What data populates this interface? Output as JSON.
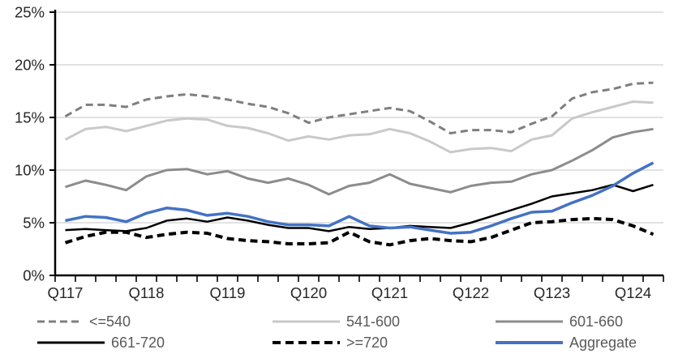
{
  "figure": {
    "background": "#FFFFFF",
    "title": ""
  },
  "chart_data": {
    "type": "line",
    "title": "",
    "xlabel": "",
    "ylabel": "",
    "grid": "horizontal",
    "legend_position": "bottom",
    "x_axis": {
      "tick_labels": [
        "Q117",
        "Q118",
        "Q119",
        "Q120",
        "Q121",
        "Q122",
        "Q123",
        "Q124"
      ],
      "label_every_n_points": 4,
      "total_points": 30,
      "x_values": [
        "Q117",
        "Q217",
        "Q317",
        "Q417",
        "Q118",
        "Q218",
        "Q318",
        "Q418",
        "Q119",
        "Q219",
        "Q319",
        "Q419",
        "Q120",
        "Q220",
        "Q320",
        "Q420",
        "Q121",
        "Q221",
        "Q321",
        "Q421",
        "Q122",
        "Q222",
        "Q322",
        "Q422",
        "Q123",
        "Q223",
        "Q323",
        "Q423",
        "Q124",
        "Q224"
      ]
    },
    "y_axis": {
      "tick_labels": [
        "0%",
        "5%",
        "10%",
        "15%",
        "20%",
        "25%"
      ],
      "min": 0,
      "max": 25,
      "tick_step": 5,
      "unit": "%"
    },
    "colors": {
      "gridline": "#D9D9D9",
      "axis": "#000000",
      "axis_text": "#262626",
      "legend_text": "#595959"
    },
    "series": [
      {
        "name": "<=540",
        "color": "#7F7F7F",
        "line_style": "dashed",
        "stroke_width": 3,
        "values": [
          15.1,
          16.2,
          16.2,
          16.0,
          16.7,
          17.0,
          17.2,
          17.0,
          16.7,
          16.3,
          16.0,
          15.4,
          14.5,
          15.0,
          15.3,
          15.6,
          15.9,
          15.6,
          14.6,
          13.5,
          13.8,
          13.8,
          13.6,
          14.4,
          15.1,
          16.8,
          17.4,
          17.7,
          18.2,
          18.3
        ]
      },
      {
        "name": "541-600",
        "color": "#C9C9C9",
        "line_style": "solid",
        "stroke_width": 3,
        "values": [
          12.9,
          13.9,
          14.1,
          13.7,
          14.2,
          14.7,
          14.9,
          14.8,
          14.2,
          14.0,
          13.5,
          12.8,
          13.2,
          12.9,
          13.3,
          13.4,
          13.9,
          13.5,
          12.7,
          11.7,
          12.0,
          12.1,
          11.8,
          12.9,
          13.3,
          14.9,
          15.5,
          16.0,
          16.5,
          16.4
        ]
      },
      {
        "name": "601-660",
        "color": "#8C8C8C",
        "line_style": "solid",
        "stroke_width": 3,
        "values": [
          8.4,
          9.0,
          8.6,
          8.1,
          9.4,
          10.0,
          10.1,
          9.6,
          9.9,
          9.2,
          8.8,
          9.2,
          8.6,
          7.7,
          8.5,
          8.8,
          9.6,
          8.7,
          8.3,
          7.9,
          8.5,
          8.8,
          8.9,
          9.6,
          10.0,
          10.9,
          11.9,
          13.1,
          13.6,
          13.9
        ]
      },
      {
        "name": "661-720",
        "color": "#000000",
        "line_style": "solid",
        "stroke_width": 2.5,
        "values": [
          4.3,
          4.4,
          4.3,
          4.2,
          4.5,
          5.2,
          5.4,
          5.1,
          5.5,
          5.2,
          4.8,
          4.5,
          4.5,
          4.2,
          4.6,
          4.4,
          4.5,
          4.7,
          4.6,
          4.5,
          5.0,
          5.6,
          6.2,
          6.8,
          7.5,
          7.8,
          8.1,
          8.6,
          8.0,
          8.6
        ]
      },
      {
        "name": ">=720",
        "color": "#000000",
        "line_style": "dashed",
        "stroke_width": 4,
        "values": [
          3.1,
          3.7,
          4.1,
          4.1,
          3.6,
          3.9,
          4.1,
          4.0,
          3.5,
          3.3,
          3.2,
          3.0,
          3.0,
          3.1,
          4.1,
          3.2,
          2.9,
          3.3,
          3.5,
          3.3,
          3.2,
          3.6,
          4.3,
          5.0,
          5.1,
          5.3,
          5.4,
          5.3,
          4.7,
          3.9
        ]
      },
      {
        "name": "Aggregate",
        "color": "#4472C4",
        "line_style": "solid",
        "stroke_width": 3.5,
        "values": [
          5.2,
          5.6,
          5.5,
          5.1,
          5.9,
          6.4,
          6.2,
          5.7,
          5.9,
          5.6,
          5.1,
          4.8,
          4.8,
          4.7,
          5.6,
          4.7,
          4.5,
          4.6,
          4.3,
          4.0,
          4.1,
          4.7,
          5.4,
          6.0,
          6.1,
          6.9,
          7.6,
          8.5,
          9.7,
          10.7
        ]
      }
    ]
  }
}
